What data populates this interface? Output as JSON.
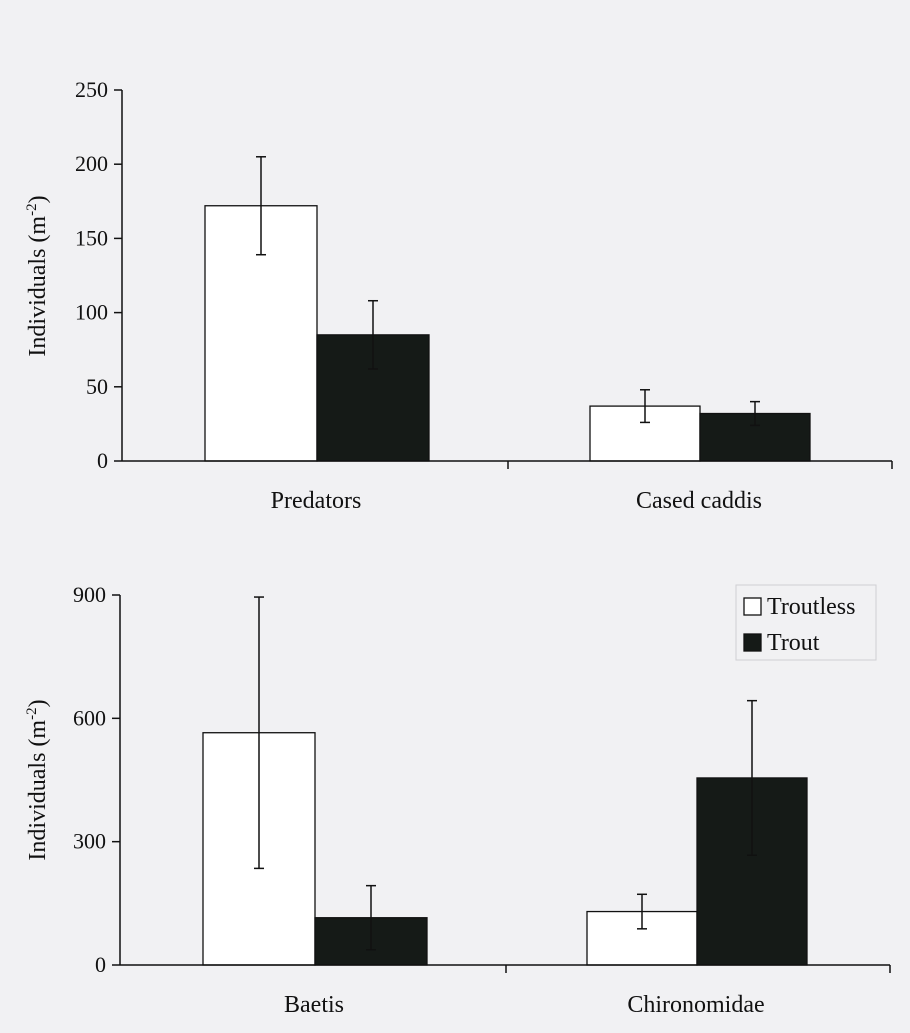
{
  "chart_data": [
    {
      "type": "bar",
      "categories": [
        "Predators",
        "Cased caddis"
      ],
      "series": [
        {
          "name": "Troutless",
          "values": [
            172,
            37
          ],
          "errors": [
            33,
            11
          ],
          "color": "#ffffff"
        },
        {
          "name": "Trout",
          "values": [
            85,
            32
          ],
          "errors": [
            23,
            8
          ],
          "color": "#151a17"
        }
      ],
      "ylabel_main": "Individuals (m",
      "ylabel_sup": "-2",
      "ylabel_close": ")",
      "ylim": [
        0,
        250
      ],
      "yticks": [
        0,
        50,
        100,
        150,
        200,
        250
      ],
      "grid": false,
      "legend": null
    },
    {
      "type": "bar",
      "categories": [
        "Baetis",
        "Chironomidae"
      ],
      "series": [
        {
          "name": "Troutless",
          "values": [
            565,
            130
          ],
          "errors": [
            330,
            42
          ],
          "color": "#ffffff"
        },
        {
          "name": "Trout",
          "values": [
            115,
            455
          ],
          "errors": [
            78,
            188
          ],
          "color": "#151a17"
        }
      ],
      "ylabel_main": "Individuals (m",
      "ylabel_sup": "-2",
      "ylabel_close": ")",
      "ylim": [
        0,
        900
      ],
      "yticks": [
        0,
        300,
        600,
        900
      ],
      "grid": false,
      "legend": {
        "placement": "top-right",
        "entries": [
          "Troutless",
          "Trout"
        ]
      }
    }
  ]
}
